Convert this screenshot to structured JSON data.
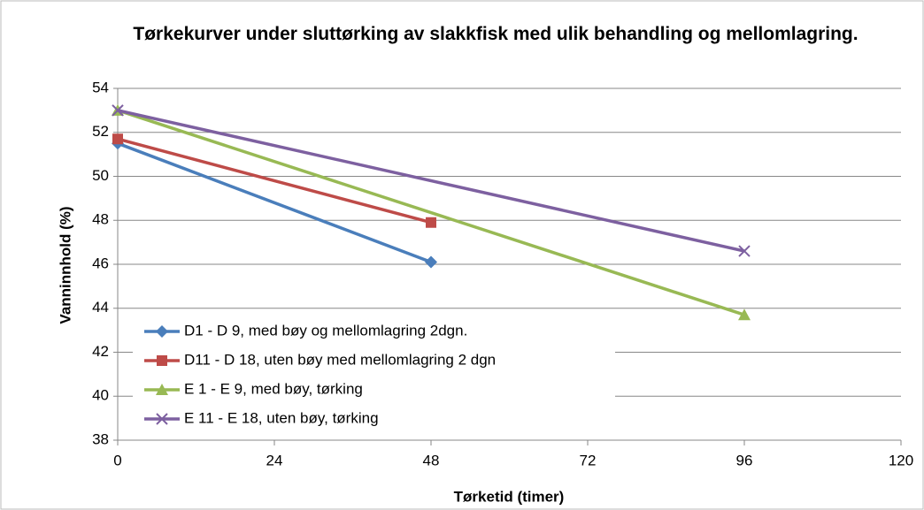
{
  "chart_data": {
    "type": "line",
    "title": "Tørkekurver under sluttørking av slakkfisk med ulik behandling og mellomlagring.",
    "xlabel": "Tørketid (timer)",
    "ylabel": "Vanninnhold (%)",
    "xlim": [
      0,
      120
    ],
    "xticks": [
      0,
      24,
      48,
      72,
      96,
      120
    ],
    "ylim": [
      38,
      54
    ],
    "yticks": [
      38,
      40,
      42,
      44,
      46,
      48,
      50,
      52,
      54
    ],
    "grid": true,
    "legend": "lower left",
    "series": [
      {
        "name": "D1 - D 9, med bøy og mellomlagring 2dgn.",
        "color": "#4a7ebb",
        "marker": "diamond",
        "x": [
          0,
          48
        ],
        "values": [
          51.5,
          46.1
        ]
      },
      {
        "name": "D11 - D 18, uten bøy med mellomlagring 2 dgn",
        "color": "#be4b48",
        "marker": "square",
        "x": [
          0,
          48
        ],
        "values": [
          51.7,
          47.9
        ]
      },
      {
        "name": "E 1 - E 9, med bøy, tørking",
        "color": "#98b954",
        "marker": "triangle",
        "x": [
          0,
          96
        ],
        "values": [
          53.0,
          43.7
        ]
      },
      {
        "name": "E 11 - E 18, uten bøy, tørking",
        "color": "#7d60a0",
        "marker": "x",
        "x": [
          0,
          96
        ],
        "values": [
          53.0,
          46.6
        ]
      }
    ]
  }
}
